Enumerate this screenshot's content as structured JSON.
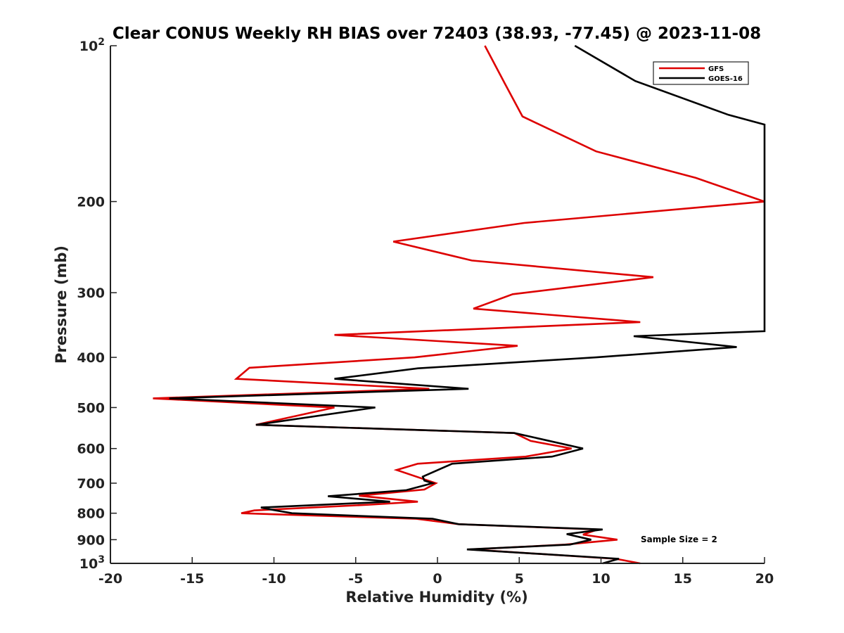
{
  "chart_data": {
    "type": "line",
    "title": "Clear CONUS Weekly RH BIAS over 72403 (38.93, -77.45) @ 2023-11-08",
    "xlabel": "Relative Humidity (%)",
    "ylabel": "Pressure (mb)",
    "xlim": [
      -20,
      20
    ],
    "ylim": [
      100,
      1000
    ],
    "y_scale": "log",
    "y_reversed": true,
    "grid": false,
    "legend_position": "top-right",
    "x_ticks": [
      -20,
      -15,
      -10,
      -5,
      0,
      5,
      10,
      15,
      20
    ],
    "x_tick_labels": [
      "-20",
      "-15",
      "-10",
      "-5",
      "0",
      "5",
      "10",
      "15",
      "20"
    ],
    "y_ticks": [
      100,
      200,
      300,
      400,
      500,
      600,
      700,
      800,
      900,
      1000
    ],
    "y_tick_labels": [
      {
        "base": "10",
        "sup": "2"
      },
      {
        "base": "200",
        "sup": ""
      },
      {
        "base": "300",
        "sup": ""
      },
      {
        "base": "400",
        "sup": ""
      },
      {
        "base": "500",
        "sup": ""
      },
      {
        "base": "600",
        "sup": ""
      },
      {
        "base": "700",
        "sup": ""
      },
      {
        "base": "800",
        "sup": ""
      },
      {
        "base": "900",
        "sup": ""
      },
      {
        "base": "10",
        "sup": "3"
      }
    ],
    "annotation": "Sample Size = 2",
    "series": [
      {
        "name": "GFS",
        "color": "#dd0000",
        "points": [
          {
            "x": 2.9,
            "y": 100
          },
          {
            "x": 4.1,
            "y": 118
          },
          {
            "x": 5.2,
            "y": 137
          },
          {
            "x": 9.7,
            "y": 160
          },
          {
            "x": 15.8,
            "y": 180
          },
          {
            "x": 20.0,
            "y": 200
          },
          {
            "x": 5.3,
            "y": 220
          },
          {
            "x": -2.7,
            "y": 239
          },
          {
            "x": 2.1,
            "y": 260
          },
          {
            "x": 13.2,
            "y": 280
          },
          {
            "x": 4.6,
            "y": 302
          },
          {
            "x": 2.2,
            "y": 322
          },
          {
            "x": 12.4,
            "y": 342
          },
          {
            "x": -6.3,
            "y": 362
          },
          {
            "x": 4.9,
            "y": 380
          },
          {
            "x": -1.4,
            "y": 400
          },
          {
            "x": -11.5,
            "y": 419
          },
          {
            "x": -12.3,
            "y": 440
          },
          {
            "x": -0.5,
            "y": 460
          },
          {
            "x": -17.4,
            "y": 480
          },
          {
            "x": -6.3,
            "y": 500
          },
          {
            "x": -11.1,
            "y": 540
          },
          {
            "x": 4.7,
            "y": 560
          },
          {
            "x": 5.7,
            "y": 580
          },
          {
            "x": 8.2,
            "y": 600
          },
          {
            "x": 5.4,
            "y": 622
          },
          {
            "x": -1.2,
            "y": 642
          },
          {
            "x": -2.5,
            "y": 660
          },
          {
            "x": -0.1,
            "y": 700
          },
          {
            "x": -0.8,
            "y": 720
          },
          {
            "x": -4.8,
            "y": 740
          },
          {
            "x": -1.2,
            "y": 760
          },
          {
            "x": -4.1,
            "y": 770
          },
          {
            "x": -11.2,
            "y": 790
          },
          {
            "x": -12.0,
            "y": 800
          },
          {
            "x": -1.3,
            "y": 820
          },
          {
            "x": 1.3,
            "y": 840
          },
          {
            "x": 9.8,
            "y": 860
          },
          {
            "x": 8.9,
            "y": 880
          },
          {
            "x": 11.0,
            "y": 900
          },
          {
            "x": 7.8,
            "y": 920
          },
          {
            "x": 2.0,
            "y": 940
          },
          {
            "x": 10.9,
            "y": 980
          },
          {
            "x": 12.4,
            "y": 1000
          }
        ]
      },
      {
        "name": "GOES-16",
        "color": "#000000",
        "points": [
          {
            "x": 8.4,
            "y": 100
          },
          {
            "x": 12.1,
            "y": 117
          },
          {
            "x": 17.8,
            "y": 136
          },
          {
            "x": 20.0,
            "y": 142
          },
          {
            "x": 20.0,
            "y": 356
          },
          {
            "x": 12.0,
            "y": 364
          },
          {
            "x": 18.3,
            "y": 382
          },
          {
            "x": 9.7,
            "y": 400
          },
          {
            "x": -1.2,
            "y": 420
          },
          {
            "x": -6.3,
            "y": 440
          },
          {
            "x": 1.9,
            "y": 460
          },
          {
            "x": -16.4,
            "y": 480
          },
          {
            "x": -3.8,
            "y": 500
          },
          {
            "x": -11.1,
            "y": 540
          },
          {
            "x": 4.7,
            "y": 560
          },
          {
            "x": 8.9,
            "y": 600
          },
          {
            "x": 7.0,
            "y": 622
          },
          {
            "x": 0.9,
            "y": 642
          },
          {
            "x": -0.9,
            "y": 680
          },
          {
            "x": -0.8,
            "y": 692
          },
          {
            "x": -0.3,
            "y": 700
          },
          {
            "x": -1.9,
            "y": 722
          },
          {
            "x": -6.7,
            "y": 742
          },
          {
            "x": -2.9,
            "y": 760
          },
          {
            "x": -10.8,
            "y": 780
          },
          {
            "x": -10.1,
            "y": 788
          },
          {
            "x": -8.9,
            "y": 800
          },
          {
            "x": -0.3,
            "y": 820
          },
          {
            "x": 1.3,
            "y": 840
          },
          {
            "x": 10.1,
            "y": 860
          },
          {
            "x": 7.9,
            "y": 878
          },
          {
            "x": 9.4,
            "y": 900
          },
          {
            "x": 8.1,
            "y": 920
          },
          {
            "x": 1.8,
            "y": 940
          },
          {
            "x": 11.1,
            "y": 980
          },
          {
            "x": 10.1,
            "y": 1000
          }
        ]
      }
    ]
  }
}
